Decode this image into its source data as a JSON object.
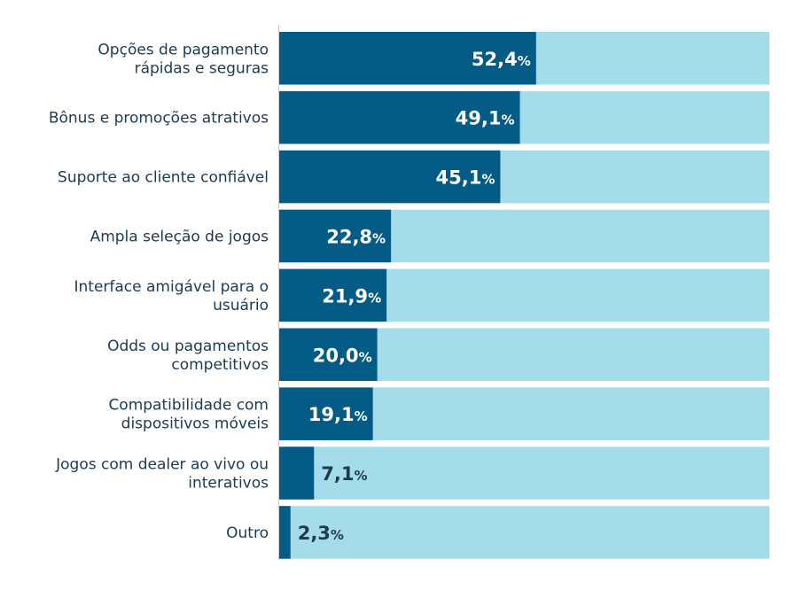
{
  "chart_data": {
    "type": "bar",
    "orientation": "horizontal",
    "categories": [
      [
        "Opções de pagamento",
        "rápidas e seguras"
      ],
      [
        "Bônus e promoções atrativos"
      ],
      [
        "Suporte ao cliente confiável"
      ],
      [
        "Ampla seleção de jogos"
      ],
      [
        "Interface amigável para o",
        "usuário"
      ],
      [
        "Odds ou pagamentos",
        "competitivos"
      ],
      [
        "Compatibilidade com",
        "dispositivos móveis"
      ],
      [
        "Jogos com dealer ao vivo ou",
        "interativos"
      ],
      [
        "Outro"
      ]
    ],
    "values": [
      52.4,
      49.1,
      45.1,
      22.8,
      21.9,
      20.0,
      19.1,
      7.1,
      2.3
    ],
    "value_labels": [
      "52,4",
      "49,1",
      "45,1",
      "22,8",
      "21,9",
      "20,0",
      "19,1",
      "7,1",
      "2,3"
    ],
    "unit": "%",
    "xlim": [
      0,
      100
    ],
    "bar_color": "#035b86",
    "track_color": "#a5dce9",
    "label_inside_color": "#ffffff",
    "label_outside_color": "#1c3a52",
    "axis_color": "#cccccc"
  }
}
